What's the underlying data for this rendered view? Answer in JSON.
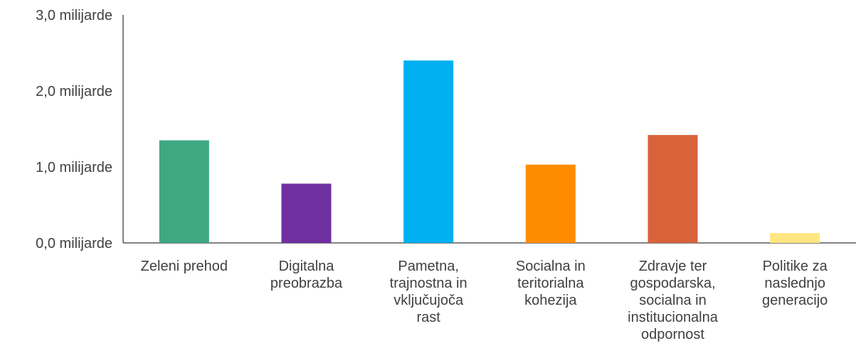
{
  "chart_data": {
    "type": "bar",
    "categories": [
      [
        "Zeleni prehod"
      ],
      [
        "Digitalna",
        "preobrazba"
      ],
      [
        "Pametna,",
        "trajnostna in",
        "vključujoča",
        "rast"
      ],
      [
        "Socialna in",
        "teritorialna",
        "kohezija"
      ],
      [
        "Zdravje ter",
        "gospodarska,",
        "socialna in",
        "institucionalna",
        "odpornost"
      ],
      [
        "Politike za",
        "naslednjo",
        "generacijo"
      ]
    ],
    "values": [
      1.35,
      0.78,
      2.4,
      1.03,
      1.42,
      0.13
    ],
    "colors": [
      "#3fa882",
      "#7030a0",
      "#00b0f0",
      "#ff8c00",
      "#d9623b",
      "#ffe680"
    ],
    "yticks": [
      {
        "value": 0,
        "label": "0,0 milijarde"
      },
      {
        "value": 1,
        "label": "1,0 milijarde"
      },
      {
        "value": 2,
        "label": "2,0 milijarde"
      },
      {
        "value": 3,
        "label": "3,0 milijarde"
      }
    ],
    "ylim": [
      0,
      3
    ],
    "grid": false,
    "legend": "none",
    "title": "",
    "xlabel": "",
    "ylabel": ""
  }
}
